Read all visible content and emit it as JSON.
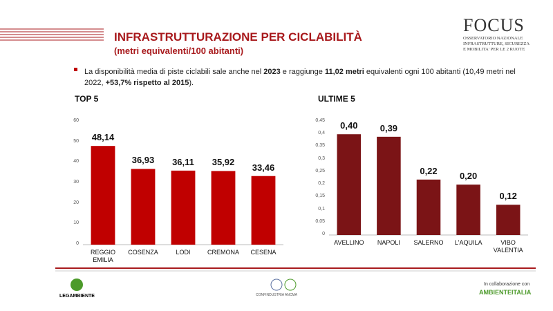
{
  "header": {
    "title": "INFRASTRUTTURAZIONE PER CICLABILITÀ",
    "subtitle": "(metri equivalenti/100 abitanti)"
  },
  "logo": {
    "name": "FOCUS",
    "lines": [
      "OSSERVATORIO NAZIONALE",
      "INFRASTRUTTURE, SICUREZZA",
      "E MOBILITA' PER LE 2 RUOTE"
    ]
  },
  "bullet": [
    {
      "text": "La disponibilità media di piste ciclabili sale anche nel ",
      "bold": false
    },
    {
      "text": "2023",
      "bold": true
    },
    {
      "text": " e raggiunge ",
      "bold": false
    },
    {
      "text": "11,02 metri",
      "bold": true
    },
    {
      "text": " equivalenti ogni 100 abitanti (10,49 metri nel 2022, ",
      "bold": false
    },
    {
      "text": "+53,7% rispetto al 2015",
      "bold": true
    },
    {
      "text": ").",
      "bold": false
    }
  ],
  "chart_data": [
    {
      "type": "bar",
      "title": "TOP 5",
      "categories": [
        "REGGIO EMILIA",
        "COSENZA",
        "LODI",
        "CREMONA",
        "CESENA"
      ],
      "values": [
        48.14,
        36.93,
        36.11,
        35.92,
        33.46
      ],
      "value_labels": [
        "48,14",
        "36,93",
        "36,11",
        "35,92",
        "33,46"
      ],
      "color": "#c00000",
      "ylim": [
        0,
        60
      ],
      "yticks": [
        0,
        10,
        20,
        30,
        40,
        50,
        60
      ]
    },
    {
      "type": "bar",
      "title": "ULTIME 5",
      "categories": [
        "AVELLINO",
        "NAPOLI",
        "SALERNO",
        "L'AQUILA",
        "VIBO VALENTIA"
      ],
      "values": [
        0.4,
        0.39,
        0.22,
        0.2,
        0.12
      ],
      "value_labels": [
        "0,40",
        "0,39",
        "0,22",
        "0,20",
        "0,12"
      ],
      "color": "#7b1416",
      "ylim": [
        0,
        0.45
      ],
      "yticks": [
        0,
        {
          "value": 0.05,
          "label": "0,05"
        },
        {
          "value": 0.1,
          "label": "0,1"
        },
        {
          "value": 0.15,
          "label": "0,15"
        },
        {
          "value": 0.2,
          "label": "0,2"
        },
        {
          "value": 0.25,
          "label": "0,25"
        },
        {
          "value": 0.3,
          "label": "0,3"
        },
        {
          "value": 0.35,
          "label": "0,35"
        },
        {
          "value": 0.4,
          "label": "0,4"
        },
        {
          "value": 0.45,
          "label": "0,45"
        }
      ]
    }
  ],
  "footer": {
    "left": "LEGAMBIENTE",
    "center": "CONFINDUSTRIA ANCMA",
    "right_top": "In collaborazione con",
    "right_bottom": "AMBIENTEITALIA"
  }
}
